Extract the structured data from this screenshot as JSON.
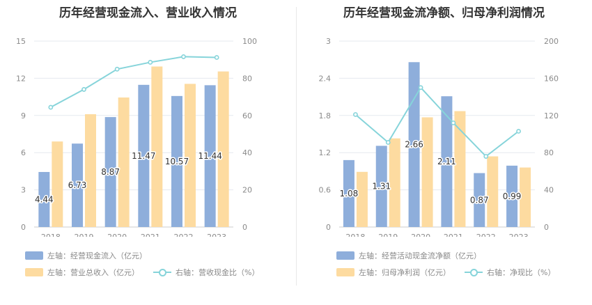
{
  "colors": {
    "bar1": "#8eaedb",
    "bar2": "#fddba0",
    "line": "#86d4da",
    "grid": "#e6e9ef",
    "axis": "#cccccc"
  },
  "chart_data": [
    {
      "type": "bar+line",
      "title": "历年经营现金流入、营业收入情况",
      "categories": [
        "2018",
        "2019",
        "2020",
        "2021",
        "2022",
        "2023"
      ],
      "left_axis": {
        "min": 0,
        "max": 15,
        "ticks": [
          "0",
          "3",
          "6",
          "9",
          "12",
          "15"
        ]
      },
      "right_axis": {
        "min": 0,
        "max": 100,
        "ticks": [
          "0",
          "20",
          "40",
          "60",
          "80",
          "100"
        ]
      },
      "series": [
        {
          "name": "经营现金流入",
          "axis": "left",
          "kind": "bar",
          "values": [
            4.44,
            6.73,
            8.87,
            11.47,
            10.57,
            11.44
          ],
          "labels": [
            "4.44",
            "6.73",
            "8.87",
            "11.47",
            "10.57",
            "11.44"
          ]
        },
        {
          "name": "营业总收入",
          "axis": "left",
          "kind": "bar",
          "values": [
            6.9,
            9.1,
            10.45,
            12.95,
            11.55,
            12.55
          ]
        },
        {
          "name": "营收现金比",
          "axis": "right",
          "kind": "line",
          "values": [
            64.4,
            74.0,
            84.9,
            88.6,
            91.6,
            91.2
          ]
        }
      ],
      "legend": {
        "item1": "左轴：经营现金流入（亿元）",
        "item2": "左轴：营业总收入（亿元）",
        "item3": "右轴：营收现金比（%）"
      }
    },
    {
      "type": "bar+line",
      "title": "历年经营现金流净额、归母净利润情况",
      "categories": [
        "2018",
        "2019",
        "2020",
        "2021",
        "2022",
        "2023"
      ],
      "left_axis": {
        "min": 0,
        "max": 3,
        "ticks": [
          "0",
          "0.6",
          "1.2",
          "1.8",
          "2.4",
          "3"
        ]
      },
      "right_axis": {
        "min": 0,
        "max": 200,
        "ticks": [
          "0",
          "40",
          "80",
          "120",
          "160",
          "200"
        ]
      },
      "series": [
        {
          "name": "经营活动现金流净额",
          "axis": "left",
          "kind": "bar",
          "values": [
            1.08,
            1.31,
            2.66,
            2.11,
            0.87,
            0.99
          ],
          "labels": [
            "1.08",
            "1.31",
            "2.66",
            "2.11",
            "0.87",
            "0.99"
          ]
        },
        {
          "name": "归母净利润",
          "axis": "left",
          "kind": "bar",
          "values": [
            0.89,
            1.43,
            1.77,
            1.87,
            1.14,
            0.96
          ]
        },
        {
          "name": "净现比",
          "axis": "right",
          "kind": "line",
          "values": [
            121,
            91,
            150,
            112,
            76,
            103
          ]
        }
      ],
      "legend": {
        "item1": "左轴：经营活动现金流净额（亿元）",
        "item2": "左轴：归母净利润（亿元）",
        "item3": "右轴：净现比（%）"
      }
    }
  ]
}
